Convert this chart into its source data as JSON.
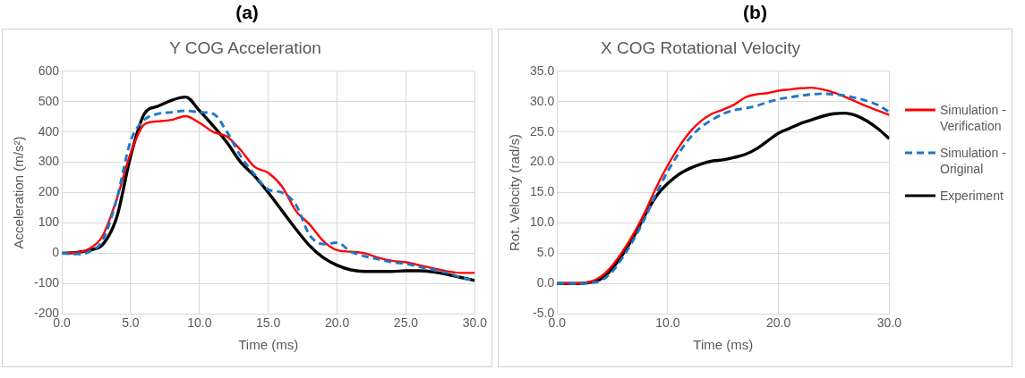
{
  "chart_data": [
    {
      "type": "line",
      "title": "Y COG Acceleration",
      "annotations": [
        "(a)"
      ],
      "xlabel": "Time (ms)",
      "ylabel": "Acceleration (m/s²)",
      "x": [
        0,
        1,
        2,
        3,
        4,
        5,
        6,
        7,
        8,
        9,
        10,
        11,
        12,
        13,
        14,
        15,
        16,
        17,
        18,
        19,
        20,
        21,
        22,
        23,
        24,
        25,
        26,
        27,
        28,
        29,
        30
      ],
      "series": [
        {
          "color": "#ff0000",
          "line_style": "solid",
          "values": [
            0,
            2,
            15,
            60,
            180,
            330,
            425,
            435,
            440,
            452,
            430,
            400,
            385,
            340,
            285,
            265,
            220,
            140,
            95,
            40,
            10,
            5,
            0,
            -15,
            -25,
            -30,
            -40,
            -50,
            -60,
            -65,
            -65
          ]
        },
        {
          "color": "#1f77c4",
          "line_style": "dashed",
          "values": [
            0,
            -3,
            5,
            45,
            180,
            370,
            440,
            460,
            465,
            470,
            465,
            460,
            400,
            320,
            260,
            210,
            200,
            160,
            60,
            30,
            35,
            5,
            -10,
            -20,
            -30,
            -35,
            -45,
            -55,
            -65,
            -80,
            -90
          ]
        },
        {
          "color": "#000000",
          "line_style": "solid",
          "values": [
            0,
            2,
            10,
            30,
            120,
            320,
            460,
            485,
            505,
            515,
            470,
            420,
            365,
            300,
            255,
            200,
            140,
            80,
            25,
            -15,
            -40,
            -55,
            -60,
            -60,
            -60,
            -58,
            -58,
            -62,
            -70,
            -80,
            -90
          ]
        }
      ],
      "xlim": [
        0,
        30
      ],
      "xticks": [
        {
          "value": 0,
          "label": "0.0"
        },
        {
          "value": 5,
          "label": "5.0"
        },
        {
          "value": 10,
          "label": "10.0"
        },
        {
          "value": 15,
          "label": "15.0"
        },
        {
          "value": 20,
          "label": "20.0"
        },
        {
          "value": 25,
          "label": "25.0"
        },
        {
          "value": 30,
          "label": "30.0"
        }
      ],
      "ylim": [
        -200,
        600
      ],
      "yticks": [
        -200,
        -100,
        0,
        100,
        200,
        300,
        400,
        500,
        600
      ],
      "grid": true,
      "legend": false,
      "marker": "none"
    },
    {
      "type": "line",
      "title": "X COG Rotational Velocity",
      "annotations": [
        "(b)"
      ],
      "xlabel": "Time (ms)",
      "ylabel": "Rot. Velocity (rad/s)",
      "x": [
        0,
        1,
        2,
        3,
        4,
        5,
        6,
        7,
        8,
        9,
        10,
        11,
        12,
        13,
        14,
        15,
        16,
        17,
        18,
        19,
        20,
        21,
        22,
        23,
        24,
        25,
        26,
        27,
        28,
        29,
        30
      ],
      "series": [
        {
          "name": "Simulation - Verification",
          "color": "#ff0000",
          "line_style": "solid",
          "values": [
            0,
            0,
            0,
            0.3,
            1.2,
            3,
            5.5,
            8.5,
            12,
            16,
            19.5,
            22.5,
            25,
            26.8,
            28,
            28.7,
            29.5,
            30.7,
            31.2,
            31.4,
            31.8,
            32,
            32.2,
            32.3,
            32,
            31.5,
            30.8,
            30,
            29.2,
            28.5,
            27.8
          ]
        },
        {
          "name": "Simulation - Original",
          "color": "#1f77c4",
          "line_style": "dashed",
          "values": [
            0,
            0,
            0,
            0.1,
            0.5,
            2,
            4.5,
            7.5,
            11,
            15,
            18.5,
            21.5,
            24,
            25.8,
            27,
            28,
            28.6,
            28.9,
            29.3,
            29.9,
            30.4,
            30.7,
            31,
            31.2,
            31.3,
            31.2,
            31,
            30.6,
            30.1,
            29.4,
            28.3
          ]
        },
        {
          "name": "Experiment",
          "color": "#000000",
          "line_style": "solid",
          "values": [
            0,
            0,
            0,
            0.2,
            0.8,
            2.5,
            5,
            8,
            11.5,
            14.5,
            16.5,
            18,
            19,
            19.7,
            20.2,
            20.4,
            20.8,
            21.3,
            22.2,
            23.5,
            24.8,
            25.6,
            26.4,
            27,
            27.6,
            28,
            28.1,
            27.7,
            26.8,
            25.5,
            23.9
          ]
        }
      ],
      "xlim": [
        0,
        30
      ],
      "xticks": [
        {
          "value": 0,
          "label": "0.0"
        },
        {
          "value": 10,
          "label": "10.0"
        },
        {
          "value": 20,
          "label": "20.0"
        },
        {
          "value": 30,
          "label": "30.0"
        }
      ],
      "ylim": [
        -5,
        35
      ],
      "yticks": [
        {
          "value": -5,
          "label": "-5.0"
        },
        {
          "value": 0,
          "label": "0.0"
        },
        {
          "value": 5,
          "label": "5.0"
        },
        {
          "value": 10,
          "label": "10.0"
        },
        {
          "value": 15,
          "label": "15.0"
        },
        {
          "value": 20,
          "label": "20.0"
        },
        {
          "value": 25,
          "label": "25.0"
        },
        {
          "value": 30,
          "label": "30.0"
        },
        {
          "value": 35,
          "label": "35.0"
        }
      ],
      "grid": true,
      "legend": "right",
      "marker": "none"
    }
  ]
}
